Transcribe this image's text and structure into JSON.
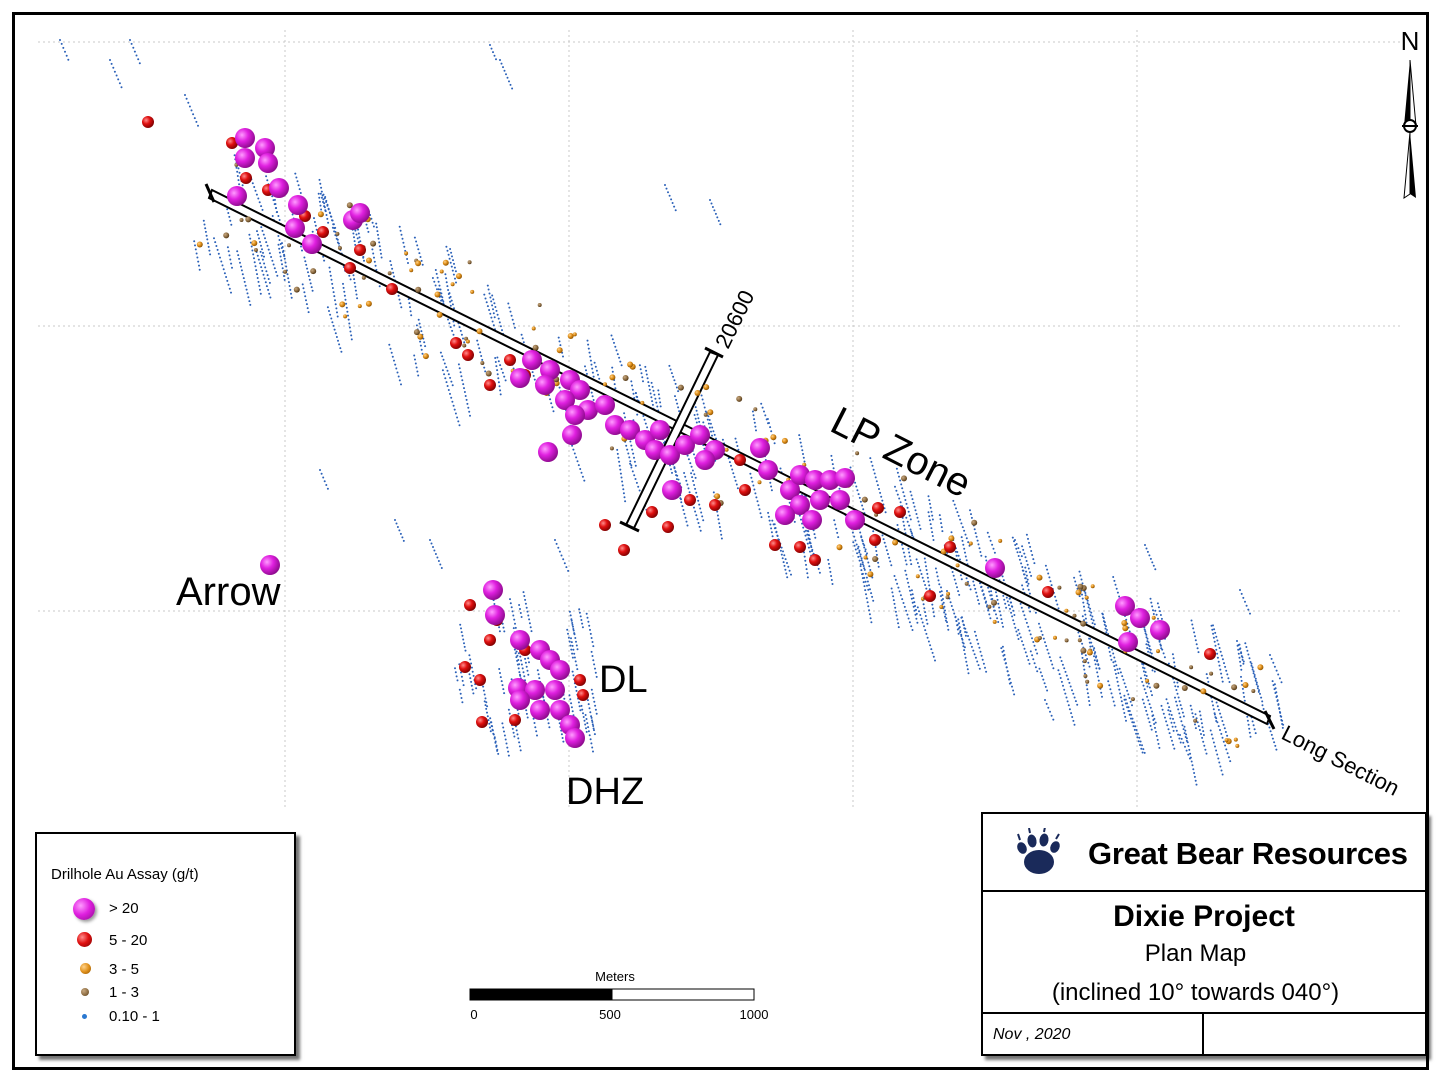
{
  "map": {
    "labels": {
      "lp_zone": "LP Zone",
      "arrow": "Arrow",
      "dl": "DL",
      "dhz": "DHZ",
      "section_20600": "20600",
      "long_section": "Long Section"
    },
    "north_arrow": {
      "letter": "N",
      "icon": "north-arrow-icon"
    }
  },
  "legend": {
    "title": "Drilhole Au Assay (g/t)",
    "items": [
      {
        "label": "> 20",
        "color": "#e020e0"
      },
      {
        "label": "5 - 20",
        "color": "#e01010"
      },
      {
        "label": "3 - 5",
        "color": "#e0901a"
      },
      {
        "label": "1 - 3",
        "color": "#8a6a40"
      },
      {
        "label": "0.10 - 1",
        "color": "#2a78d0"
      }
    ]
  },
  "scale": {
    "title": "Meters",
    "ticks": [
      "0",
      "500",
      "1000"
    ]
  },
  "title_block": {
    "company": "Great Bear Resources",
    "logo_icon": "bear-paw-icon",
    "project": "Dixie Project",
    "subtitle": "Plan Map",
    "note": "(inclined 10° towards 040°)",
    "date": "Nov , 2020"
  }
}
